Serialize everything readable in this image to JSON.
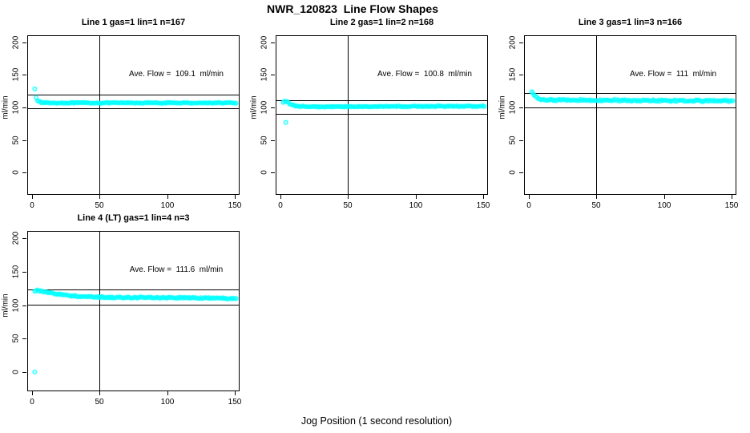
{
  "page": {
    "main_title": "NWR_120823  Line Flow Shapes",
    "bottom_axis_label": "Jog Position (1 second resolution)",
    "background_color": "#ffffff",
    "point_color": "#00ffff",
    "reference_line_color": "#000000",
    "marker": "open-circle"
  },
  "chart_data": [
    {
      "type": "scatter",
      "title": "Line 1 gas=1 lin=1 n=167",
      "n": 167,
      "annotation": "Ave. Flow =  109.1  ml/min",
      "ave_flow_ml_min": 109.1,
      "ylabel": "ml/min",
      "xlim": [
        0,
        155
      ],
      "ylim": [
        0,
        200
      ],
      "x_ticks": [
        0,
        50,
        100,
        150
      ],
      "y_ticks": [
        0,
        50,
        100,
        150,
        200
      ],
      "ref_hlines": [
        120.0,
        98.2
      ],
      "ref_vline_x": 50,
      "series": {
        "x_start": 2,
        "x_end": 151,
        "x_step": 1,
        "anchors": [
          [
            2,
            129
          ],
          [
            3,
            116
          ],
          [
            4,
            111
          ],
          [
            5,
            109
          ],
          [
            7,
            107.5
          ],
          [
            15,
            107
          ],
          [
            151,
            107
          ]
        ],
        "noise_amplitude": 0.6
      },
      "outliers": []
    },
    {
      "type": "scatter",
      "title": "Line 2 gas=1 lin=2 n=168",
      "n": 168,
      "annotation": "Ave. Flow =  100.8  ml/min",
      "ave_flow_ml_min": 100.8,
      "ylabel": "ml/min",
      "xlim": [
        0,
        155
      ],
      "ylim": [
        0,
        200
      ],
      "x_ticks": [
        0,
        50,
        100,
        150
      ],
      "y_ticks": [
        0,
        50,
        100,
        150,
        200
      ],
      "ref_hlines": [
        110.9,
        90.7
      ],
      "ref_vline_x": 50,
      "series": {
        "x_start": 2,
        "x_end": 151,
        "x_step": 1,
        "anchors": [
          [
            2,
            108
          ],
          [
            4,
            110
          ],
          [
            6,
            107
          ],
          [
            8,
            104
          ],
          [
            12,
            102
          ],
          [
            25,
            101
          ],
          [
            80,
            101.5
          ],
          [
            151,
            102
          ]
        ],
        "noise_amplitude": 0.6
      },
      "outliers": [
        [
          4,
          77
        ]
      ]
    },
    {
      "type": "scatter",
      "title": "Line 3 gas=1 lin=3 n=166",
      "n": 166,
      "annotation": "Ave. Flow =  111  ml/min",
      "ave_flow_ml_min": 111,
      "ylabel": "ml/min",
      "xlim": [
        0,
        155
      ],
      "ylim": [
        0,
        200
      ],
      "x_ticks": [
        0,
        50,
        100,
        150
      ],
      "y_ticks": [
        0,
        50,
        100,
        150,
        200
      ],
      "ref_hlines": [
        122.1,
        99.9
      ],
      "ref_vline_x": 50,
      "series": {
        "x_start": 2,
        "x_end": 151,
        "x_step": 1,
        "anchors": [
          [
            2,
            124
          ],
          [
            3,
            121
          ],
          [
            5,
            116
          ],
          [
            8,
            113
          ],
          [
            15,
            111.5
          ],
          [
            60,
            111
          ],
          [
            151,
            110
          ]
        ],
        "noise_amplitude": 1.3
      },
      "outliers": []
    },
    {
      "type": "scatter",
      "title": "Line 4 (LT) gas=1 lin=4 n=3",
      "n": 3,
      "annotation": "Ave. Flow =  111.6  ml/min",
      "ave_flow_ml_min": 111.6,
      "ylabel": "ml/min",
      "xlim": [
        0,
        155
      ],
      "ylim": [
        0,
        200
      ],
      "x_ticks": [
        0,
        50,
        100,
        150
      ],
      "y_ticks": [
        0,
        50,
        100,
        150,
        200
      ],
      "ref_hlines": [
        122.8,
        100.4
      ],
      "ref_vline_x": 50,
      "series": {
        "x_start": 2,
        "x_end": 151,
        "x_step": 1,
        "anchors": [
          [
            2,
            120
          ],
          [
            4,
            122
          ],
          [
            8,
            121
          ],
          [
            14,
            118
          ],
          [
            22,
            115.5
          ],
          [
            35,
            113
          ],
          [
            60,
            111.5
          ],
          [
            110,
            111
          ],
          [
            151,
            110
          ]
        ],
        "noise_amplitude": 0.9
      },
      "outliers": [
        [
          2,
          0
        ]
      ]
    }
  ]
}
